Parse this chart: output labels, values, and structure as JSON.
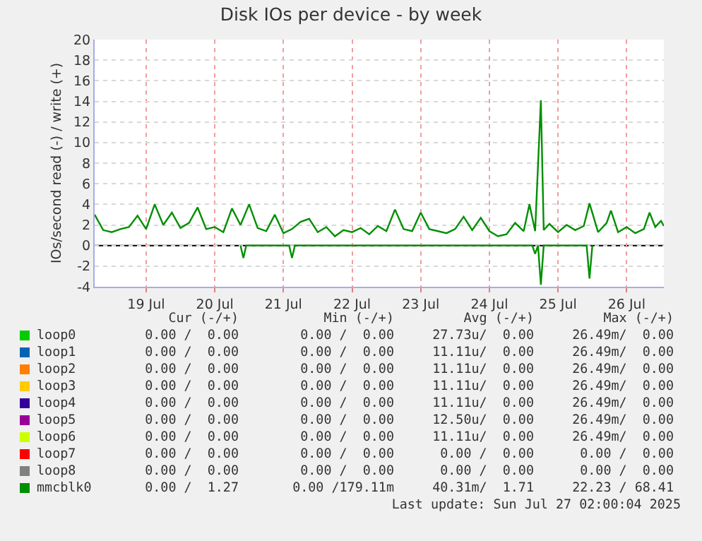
{
  "chart_data": {
    "type": "line",
    "title": "Disk IOs per device - by week",
    "ylabel": "IOs/second read (-) / write (+)",
    "xlim": [
      "2025-07-18T18:00",
      "2025-07-27T01:00"
    ],
    "xticks": [
      {
        "value": "2025-07-19T12:00",
        "label": "19 Jul"
      },
      {
        "value": "2025-07-20T12:00",
        "label": "20 Jul"
      },
      {
        "value": "2025-07-21T12:00",
        "label": "21 Jul"
      },
      {
        "value": "2025-07-22T12:00",
        "label": "22 Jul"
      },
      {
        "value": "2025-07-23T12:00",
        "label": "23 Jul"
      },
      {
        "value": "2025-07-24T12:00",
        "label": "24 Jul"
      },
      {
        "value": "2025-07-25T12:00",
        "label": "25 Jul"
      },
      {
        "value": "2025-07-26T12:00",
        "label": "26 Jul"
      }
    ],
    "ylim": [
      -4,
      20
    ],
    "yticks": [
      -4,
      -2,
      0,
      2,
      4,
      6,
      8,
      10,
      12,
      14,
      16,
      18,
      20
    ],
    "grid": true,
    "legend": "bottom",
    "marker": "none",
    "line_style": "solid",
    "ref_lines": [
      {
        "axis": "y",
        "value": 0,
        "color": "#000000"
      }
    ],
    "series": [
      {
        "name": "loop0",
        "color": "#00cc00"
      },
      {
        "name": "loop1",
        "color": "#0066b3"
      },
      {
        "name": "loop2",
        "color": "#ff8000"
      },
      {
        "name": "loop3",
        "color": "#ffcc00"
      },
      {
        "name": "loop4",
        "color": "#330099"
      },
      {
        "name": "loop5",
        "color": "#990099"
      },
      {
        "name": "loop6",
        "color": "#ccff00"
      },
      {
        "name": "loop7",
        "color": "#ff0000"
      },
      {
        "name": "loop8",
        "color": "#808080"
      },
      {
        "name": "mmcblk0",
        "color": "#008f00",
        "x": [
          "2025-07-18T18:00",
          "2025-07-18T21:00",
          "2025-07-19T00:00",
          "2025-07-19T03:00",
          "2025-07-19T06:00",
          "2025-07-19T09:00",
          "2025-07-19T12:00",
          "2025-07-19T15:00",
          "2025-07-19T18:00",
          "2025-07-19T21:00",
          "2025-07-20T00:00",
          "2025-07-20T03:00",
          "2025-07-20T06:00",
          "2025-07-20T09:00",
          "2025-07-20T12:00",
          "2025-07-20T15:00",
          "2025-07-20T18:00",
          "2025-07-20T21:00",
          "2025-07-21T00:00",
          "2025-07-21T03:00",
          "2025-07-21T06:00",
          "2025-07-21T09:00",
          "2025-07-21T12:00",
          "2025-07-21T15:00",
          "2025-07-21T18:00",
          "2025-07-21T21:00",
          "2025-07-22T00:00",
          "2025-07-22T03:00",
          "2025-07-22T06:00",
          "2025-07-22T09:00",
          "2025-07-22T12:00",
          "2025-07-22T15:00",
          "2025-07-22T18:00",
          "2025-07-22T21:00",
          "2025-07-23T00:00",
          "2025-07-23T03:00",
          "2025-07-23T06:00",
          "2025-07-23T09:00",
          "2025-07-23T12:00",
          "2025-07-23T15:00",
          "2025-07-23T18:00",
          "2025-07-23T21:00",
          "2025-07-24T00:00",
          "2025-07-24T03:00",
          "2025-07-24T06:00",
          "2025-07-24T09:00",
          "2025-07-24T12:00",
          "2025-07-24T15:00",
          "2025-07-24T18:00",
          "2025-07-24T21:00",
          "2025-07-25T00:00",
          "2025-07-25T02:00",
          "2025-07-25T04:00",
          "2025-07-25T06:00",
          "2025-07-25T07:00",
          "2025-07-25T09:00",
          "2025-07-25T12:00",
          "2025-07-25T15:00",
          "2025-07-25T18:00",
          "2025-07-25T21:00",
          "2025-07-25T23:00",
          "2025-07-26T02:00",
          "2025-07-26T05:00",
          "2025-07-26T06:30",
          "2025-07-26T09:00",
          "2025-07-26T12:00",
          "2025-07-26T15:00",
          "2025-07-26T18:00",
          "2025-07-26T20:00",
          "2025-07-26T22:00",
          "2025-07-27T00:00",
          "2025-07-27T01:00"
        ],
        "values": [
          3.0,
          1.5,
          1.3,
          1.6,
          1.8,
          2.9,
          1.6,
          4.0,
          2.0,
          3.2,
          1.7,
          2.2,
          3.7,
          1.6,
          1.8,
          1.3,
          3.6,
          2.0,
          4.0,
          1.7,
          1.4,
          3.0,
          1.2,
          1.6,
          2.3,
          2.6,
          1.3,
          1.8,
          0.9,
          1.5,
          1.3,
          1.7,
          1.1,
          1.9,
          1.4,
          3.5,
          1.6,
          1.4,
          3.2,
          1.6,
          1.4,
          1.2,
          1.6,
          2.8,
          1.5,
          2.7,
          1.4,
          0.9,
          1.1,
          2.2,
          1.4,
          4.0,
          1.4,
          14.1,
          1.5,
          2.1,
          1.3,
          2.0,
          1.5,
          1.9,
          4.1,
          1.3,
          2.2,
          3.4,
          1.3,
          1.8,
          1.2,
          1.6,
          3.2,
          1.8,
          2.4,
          1.9
        ]
      },
      {
        "color": "#008f00",
        "x": [
          "2025-07-20T21:00",
          "2025-07-20T22:00",
          "2025-07-20T23:00",
          "2025-07-21T14:00",
          "2025-07-21T15:00",
          "2025-07-21T16:00",
          "2025-07-25T03:00",
          "2025-07-25T04:00",
          "2025-07-25T05:00",
          "2025-07-25T06:00",
          "2025-07-25T07:00",
          "2025-07-25T22:00",
          "2025-07-25T23:00",
          "2025-07-26T00:00"
        ],
        "values": [
          0,
          -1.2,
          0,
          0,
          -1.2,
          0,
          0,
          -0.8,
          0,
          -3.8,
          0,
          0,
          -3.2,
          0
        ]
      }
    ],
    "annotations": [
      "Cur (-/+)",
      "Min (-/+)",
      "Avg (-/+)",
      "Max (-/+)",
      "0.00 /  0.00",
      "0.00 /  0.00",
      "27.73u/  0.00",
      "26.49m/  0.00",
      "0.00 /  0.00",
      "0.00 /  0.00",
      "11.11u/  0.00",
      "26.49m/  0.00",
      "0.00 /  0.00",
      "0.00 /  0.00",
      "11.11u/  0.00",
      "26.49m/  0.00",
      "0.00 /  0.00",
      "0.00 /  0.00",
      "11.11u/  0.00",
      "26.49m/  0.00",
      "0.00 /  0.00",
      "0.00 /  0.00",
      "11.11u/  0.00",
      "26.49m/  0.00",
      "0.00 /  0.00",
      "0.00 /  0.00",
      "12.50u/  0.00",
      "26.49m/  0.00",
      "0.00 /  0.00",
      "0.00 /  0.00",
      "11.11u/  0.00",
      "26.49m/  0.00",
      "0.00 /  0.00",
      "0.00 /  0.00",
      "0.00 /  0.00",
      "0.00 /  0.00",
      "0.00 /  0.00",
      "0.00 /  0.00",
      "0.00 /  0.00",
      "0.00 /  0.00",
      "0.00 /  1.27",
      "0.00 /179.11m",
      "40.31m/  1.71",
      "22.23 / 68.41",
      "Last update: Sun Jul 27 02:00:04 2025"
    ]
  }
}
